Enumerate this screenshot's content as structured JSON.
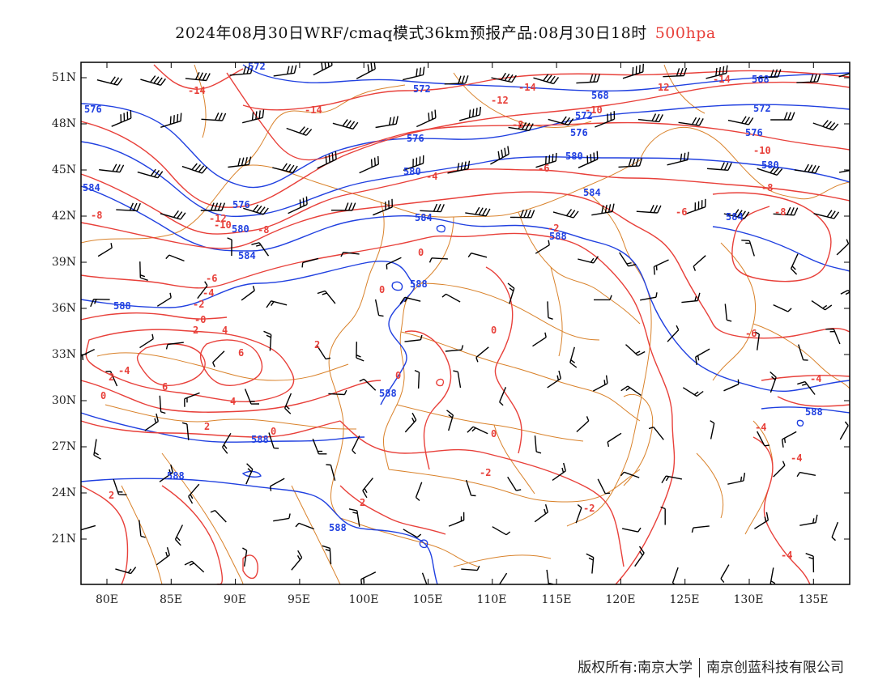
{
  "title": {
    "main": "2024年08月30日WRF/cmaq模式36km预报产品:08月30日18时",
    "level": "500hpa",
    "level_color": "#e8403a"
  },
  "axes": {
    "lat_labels": [
      "51N",
      "48N",
      "45N",
      "42N",
      "39N",
      "36N",
      "33N",
      "30N",
      "27N",
      "24N",
      "21N"
    ],
    "lon_labels": [
      "80E",
      "85E",
      "90E",
      "95E",
      "100E",
      "105E",
      "110E",
      "115E",
      "120E",
      "125E",
      "130E",
      "135E"
    ]
  },
  "colors": {
    "height_contour": "#2040e0",
    "temp_contour": "#e8403a",
    "boundary": "#d9822b",
    "wind_barb": "#000000",
    "frame": "#000000"
  },
  "height_contour_labels": [
    "572",
    "576",
    "580",
    "584",
    "588"
  ],
  "temp_contour_labels": [
    "-14",
    "-12",
    "-10",
    "-8",
    "-6",
    "-4",
    "-2",
    "0",
    "2",
    "4",
    "6"
  ],
  "footer": {
    "copyright": "版权所有:南京大学",
    "company": "南京创蓝科技有限公司"
  }
}
